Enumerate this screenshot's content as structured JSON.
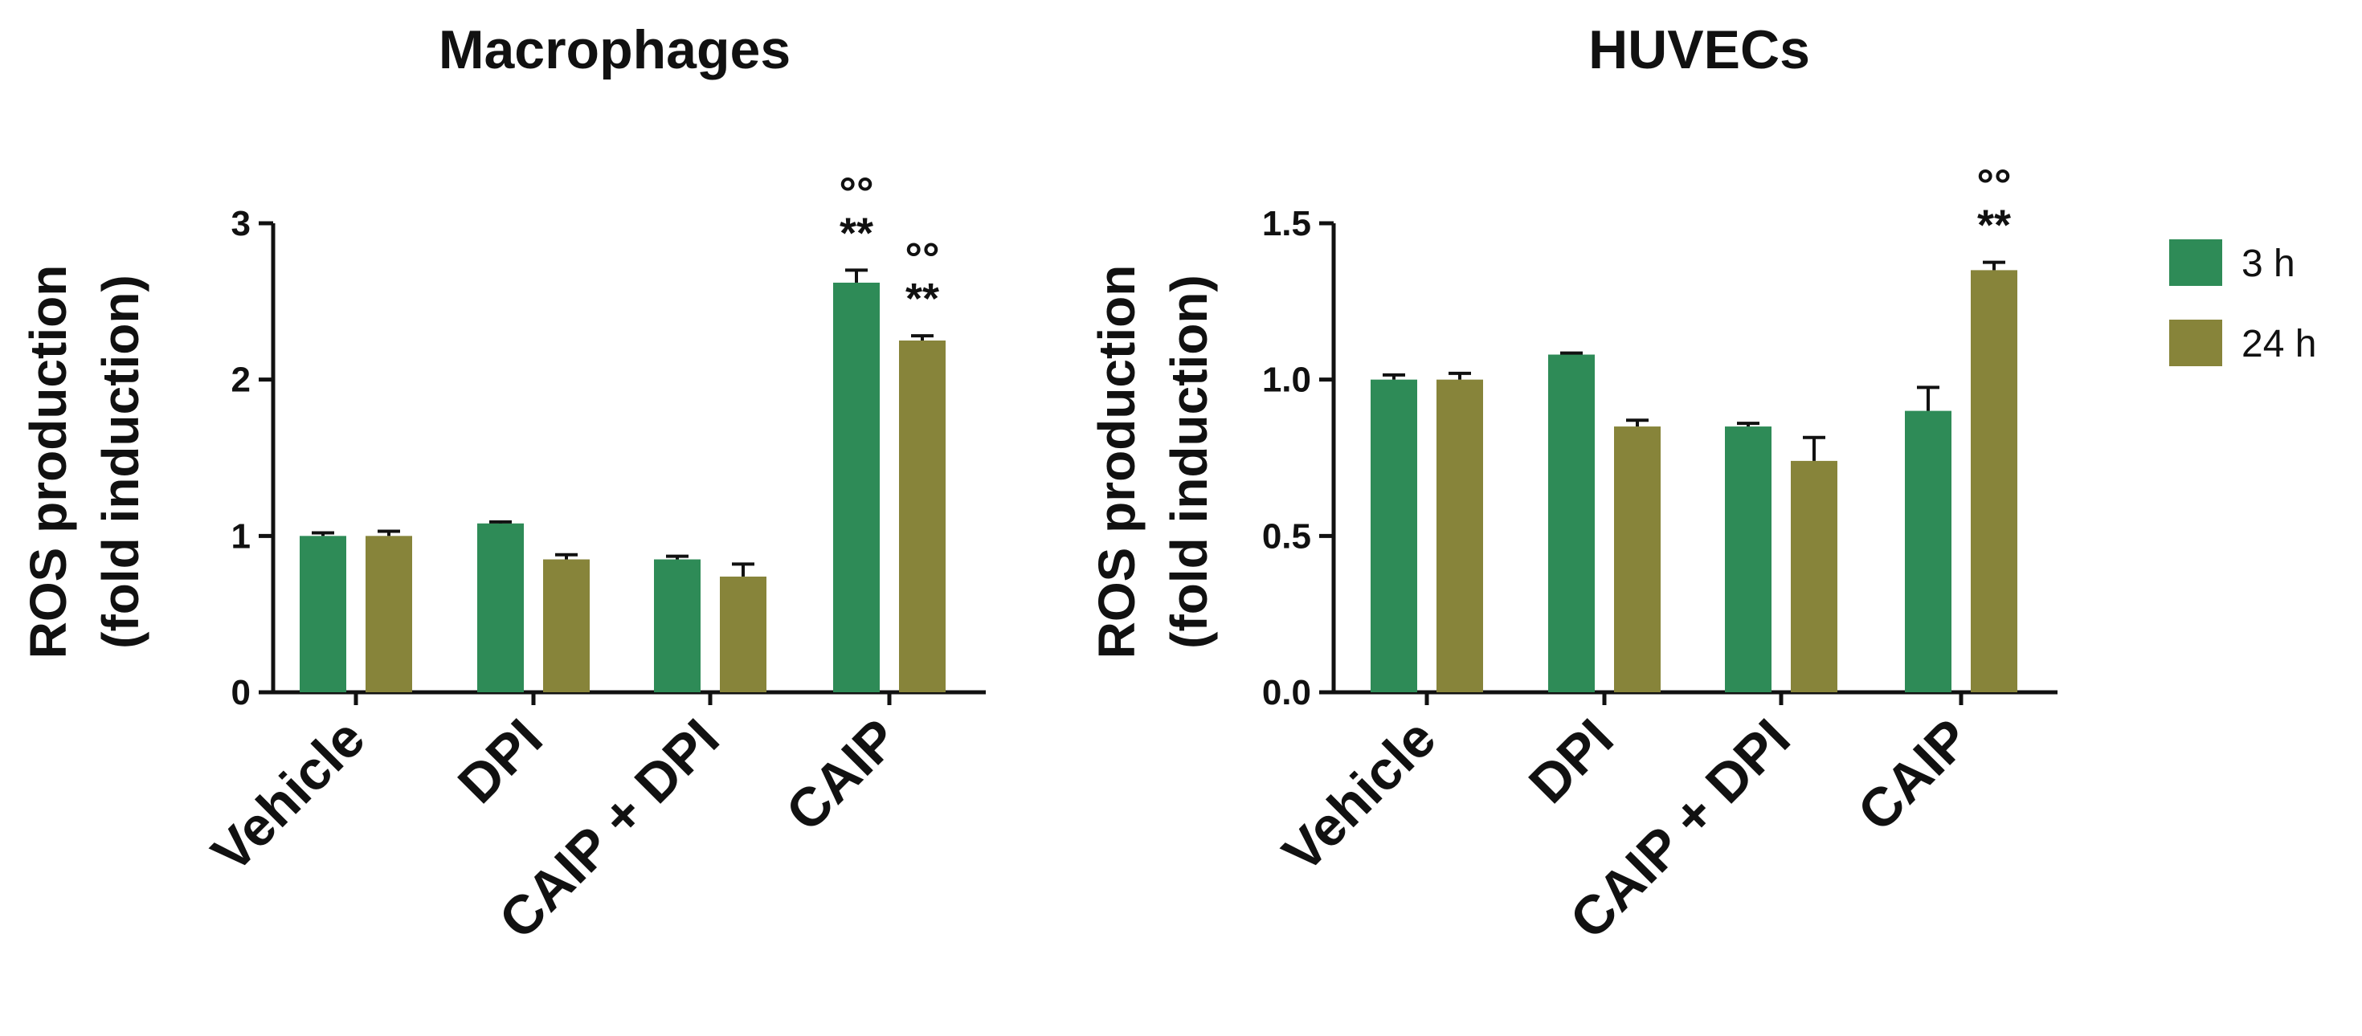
{
  "colors": {
    "3 h": "#2e8b57",
    "24 h": "#87843a"
  },
  "legend": {
    "placement": "right",
    "items": [
      "3 h",
      "24 h"
    ]
  },
  "chart_data": [
    {
      "type": "bar",
      "title": "Macrophages",
      "ylabel_line1": "ROS production",
      "ylabel_line2": "(fold induction)",
      "categories": [
        "Vehicle",
        "DPI",
        "CAIP + DPI",
        "CAIP"
      ],
      "ylim": [
        0,
        3
      ],
      "yticks": [
        "0",
        "1",
        "2",
        "3"
      ],
      "series": [
        {
          "name": "3 h",
          "values": [
            1.0,
            1.08,
            0.85,
            2.62
          ],
          "errors": [
            0.02,
            0.01,
            0.02,
            0.08
          ]
        },
        {
          "name": "24 h",
          "values": [
            1.0,
            0.85,
            0.74,
            2.25
          ],
          "errors": [
            0.03,
            0.03,
            0.08,
            0.03
          ]
        }
      ],
      "annotations": [
        {
          "category": "CAIP",
          "series": "3 h",
          "line1": "°°",
          "line2": "**"
        },
        {
          "category": "CAIP",
          "series": "24 h",
          "line1": "°°",
          "line2": "**"
        }
      ]
    },
    {
      "type": "bar",
      "title": "HUVECs",
      "ylabel_line1": "ROS production",
      "ylabel_line2": "(fold induction)",
      "categories": [
        "Vehicle",
        "DPI",
        "CAIP + DPI",
        "CAIP"
      ],
      "ylim": [
        0,
        1.5
      ],
      "yticks": [
        "0.0",
        "0.5",
        "1.0",
        "1.5"
      ],
      "series": [
        {
          "name": "3 h",
          "values": [
            1.0,
            1.08,
            0.85,
            0.9
          ],
          "errors": [
            0.015,
            0.005,
            0.01,
            0.075
          ]
        },
        {
          "name": "24 h",
          "values": [
            1.0,
            0.85,
            0.74,
            1.35
          ],
          "errors": [
            0.02,
            0.02,
            0.075,
            0.025
          ]
        }
      ],
      "annotations": [
        {
          "category": "CAIP",
          "series": "24 h",
          "line1": "°°",
          "line2": "**"
        }
      ]
    }
  ]
}
